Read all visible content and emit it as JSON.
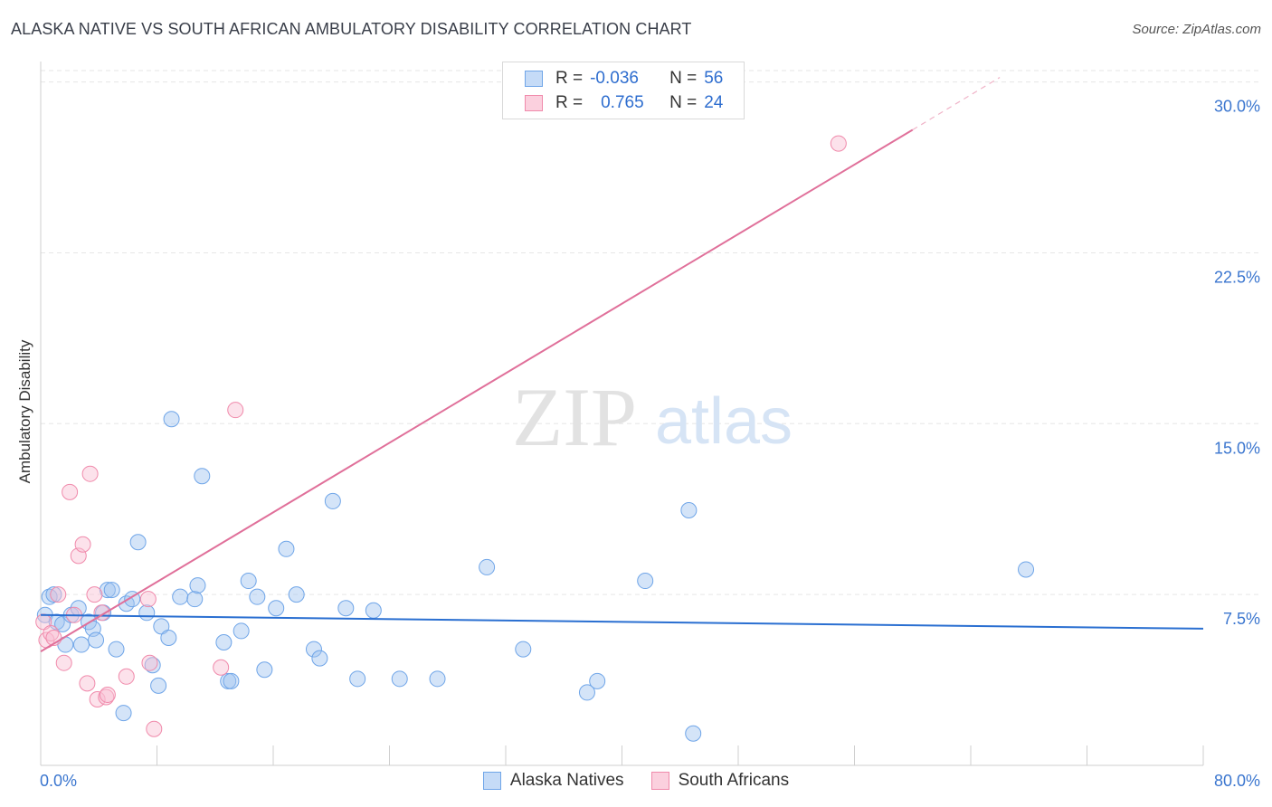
{
  "title": "ALASKA NATIVE VS SOUTH AFRICAN AMBULATORY DISABILITY CORRELATION CHART",
  "source": "Source: ZipAtlas.com",
  "watermark": {
    "zip": "ZIP",
    "atlas": "atlas"
  },
  "legend_top": {
    "rows": [
      {
        "r_label": "R = ",
        "r_value": "-0.036",
        "n_label": "N = ",
        "n_value": "56",
        "color": "#6fa5e8"
      },
      {
        "r_label": "R = ",
        "r_value": "0.765",
        "n_label": "N = ",
        "n_value": "24",
        "color": "#f08aab"
      }
    ]
  },
  "legend_bottom": [
    {
      "label": "Alaska Natives",
      "color": "#6fa5e8"
    },
    {
      "label": "South Africans",
      "color": "#f08aab"
    }
  ],
  "chart_data": {
    "type": "scatter",
    "title": "ALASKA NATIVE VS SOUTH AFRICAN AMBULATORY DISABILITY CORRELATION CHART",
    "xlabel": "",
    "ylabel": "Ambulatory Disability",
    "xlim": [
      0,
      80
    ],
    "ylim": [
      0,
      30.5
    ],
    "x_tick_labels": [
      "0.0%",
      "80.0%"
    ],
    "y_ticks": [
      7.5,
      15.0,
      22.5,
      30.0
    ],
    "y_tick_labels": [
      "7.5%",
      "15.0%",
      "22.5%",
      "30.0%"
    ],
    "grid": true,
    "legend_placement": "bottom",
    "series": [
      {
        "name": "Alaska Natives",
        "color": "#6fa5e8",
        "trend_color": "#2a6fd1",
        "trend": {
          "x0": 0,
          "y0": 6.6,
          "x1": 80,
          "y1": 6.0
        },
        "points": [
          [
            0.3,
            6.6
          ],
          [
            0.6,
            7.4
          ],
          [
            0.9,
            7.5
          ],
          [
            1.1,
            6.3
          ],
          [
            1.5,
            6.2
          ],
          [
            1.7,
            5.3
          ],
          [
            2.1,
            6.6
          ],
          [
            2.6,
            6.9
          ],
          [
            2.8,
            5.3
          ],
          [
            3.3,
            6.3
          ],
          [
            3.6,
            6.0
          ],
          [
            3.8,
            5.5
          ],
          [
            4.3,
            6.7
          ],
          [
            4.6,
            7.7
          ],
          [
            4.9,
            7.7
          ],
          [
            5.2,
            5.1
          ],
          [
            5.7,
            2.3
          ],
          [
            5.9,
            7.1
          ],
          [
            6.3,
            7.3
          ],
          [
            6.7,
            9.8
          ],
          [
            7.3,
            6.7
          ],
          [
            7.7,
            4.4
          ],
          [
            8.1,
            3.5
          ],
          [
            8.3,
            6.1
          ],
          [
            8.8,
            5.6
          ],
          [
            9.0,
            15.2
          ],
          [
            9.6,
            7.4
          ],
          [
            10.6,
            7.3
          ],
          [
            10.8,
            7.9
          ],
          [
            11.1,
            12.7
          ],
          [
            12.6,
            5.4
          ],
          [
            12.9,
            3.7
          ],
          [
            13.1,
            3.7
          ],
          [
            13.8,
            5.9
          ],
          [
            14.3,
            8.1
          ],
          [
            14.9,
            7.4
          ],
          [
            15.4,
            4.2
          ],
          [
            16.2,
            6.9
          ],
          [
            16.9,
            9.5
          ],
          [
            17.6,
            7.5
          ],
          [
            18.8,
            5.1
          ],
          [
            19.2,
            4.7
          ],
          [
            20.1,
            11.6
          ],
          [
            21.0,
            6.9
          ],
          [
            21.8,
            3.8
          ],
          [
            22.9,
            6.8
          ],
          [
            24.7,
            3.8
          ],
          [
            27.3,
            3.8
          ],
          [
            30.7,
            8.7
          ],
          [
            33.2,
            5.1
          ],
          [
            37.6,
            3.2
          ],
          [
            38.3,
            3.7
          ],
          [
            41.6,
            8.1
          ],
          [
            44.6,
            11.2
          ],
          [
            44.9,
            1.4
          ],
          [
            67.8,
            8.6
          ]
        ]
      },
      {
        "name": "South Africans",
        "color": "#f08aab",
        "trend_color": "#e0709a",
        "trend": {
          "x0": 0,
          "y0": 5.0,
          "x1": 60,
          "y1": 27.9
        },
        "trend_dashed_to": {
          "x": 66,
          "y": 30.2
        },
        "points": [
          [
            0.2,
            6.3
          ],
          [
            0.4,
            5.5
          ],
          [
            0.7,
            5.8
          ],
          [
            0.9,
            5.6
          ],
          [
            1.2,
            7.5
          ],
          [
            1.6,
            4.5
          ],
          [
            2.0,
            12.0
          ],
          [
            2.3,
            6.6
          ],
          [
            2.6,
            9.2
          ],
          [
            2.9,
            9.7
          ],
          [
            3.2,
            3.6
          ],
          [
            3.4,
            12.8
          ],
          [
            3.7,
            7.5
          ],
          [
            3.9,
            2.9
          ],
          [
            4.5,
            3.0
          ],
          [
            4.6,
            3.1
          ],
          [
            5.9,
            3.9
          ],
          [
            7.4,
            7.3
          ],
          [
            7.5,
            4.5
          ],
          [
            7.8,
            1.6
          ],
          [
            12.4,
            4.3
          ],
          [
            13.4,
            15.6
          ],
          [
            54.9,
            27.3
          ],
          [
            4.2,
            6.7
          ]
        ]
      }
    ]
  }
}
